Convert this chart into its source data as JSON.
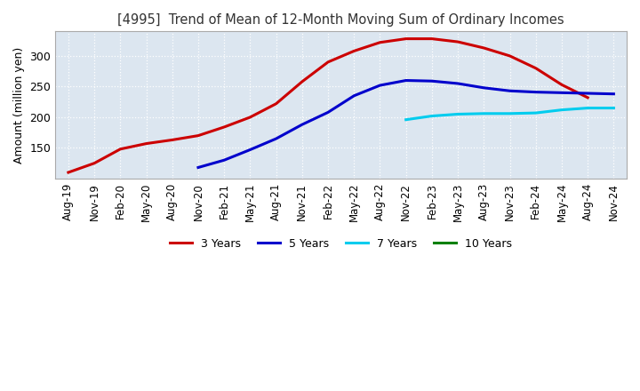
{
  "title": "[4995]  Trend of Mean of 12-Month Moving Sum of Ordinary Incomes",
  "ylabel": "Amount (million yen)",
  "ylim": [
    100,
    340
  ],
  "yticks": [
    150,
    200,
    250,
    300
  ],
  "background_color": "#ffffff",
  "plot_bg_color": "#dce6f0",
  "grid_color": "#ffffff",
  "x_labels": [
    "Aug-19",
    "Nov-19",
    "Feb-20",
    "May-20",
    "Aug-20",
    "Nov-20",
    "Feb-21",
    "May-21",
    "Aug-21",
    "Nov-21",
    "Feb-22",
    "May-22",
    "Aug-22",
    "Nov-22",
    "Feb-23",
    "May-23",
    "Aug-23",
    "Nov-23",
    "Feb-24",
    "May-24",
    "Aug-24",
    "Nov-24"
  ],
  "series": {
    "3 Years": {
      "color": "#cc0000",
      "data_x": [
        0,
        1,
        2,
        3,
        4,
        5,
        6,
        7,
        8,
        9,
        10,
        11,
        12,
        13,
        14,
        15,
        16,
        17,
        18,
        19,
        20
      ],
      "data_y": [
        110,
        125,
        148,
        157,
        163,
        170,
        184,
        200,
        222,
        258,
        290,
        308,
        322,
        328,
        328,
        323,
        313,
        300,
        280,
        253,
        232
      ]
    },
    "5 Years": {
      "color": "#0000cc",
      "data_x": [
        5,
        6,
        7,
        8,
        9,
        10,
        11,
        12,
        13,
        14,
        15,
        16,
        17,
        18,
        19,
        20,
        21
      ],
      "data_y": [
        118,
        130,
        147,
        165,
        188,
        208,
        235,
        252,
        260,
        259,
        255,
        248,
        243,
        241,
        240,
        239,
        238
      ]
    },
    "7 Years": {
      "color": "#00ccee",
      "data_x": [
        13,
        14,
        15,
        16,
        17,
        18,
        19,
        20,
        21
      ],
      "data_y": [
        196,
        202,
        205,
        206,
        206,
        207,
        212,
        215,
        215
      ]
    },
    "10 Years": {
      "color": "#008000",
      "data_x": [],
      "data_y": []
    }
  },
  "legend_labels": [
    "3 Years",
    "5 Years",
    "7 Years",
    "10 Years"
  ],
  "legend_colors": [
    "#cc0000",
    "#0000cc",
    "#00ccee",
    "#008000"
  ]
}
